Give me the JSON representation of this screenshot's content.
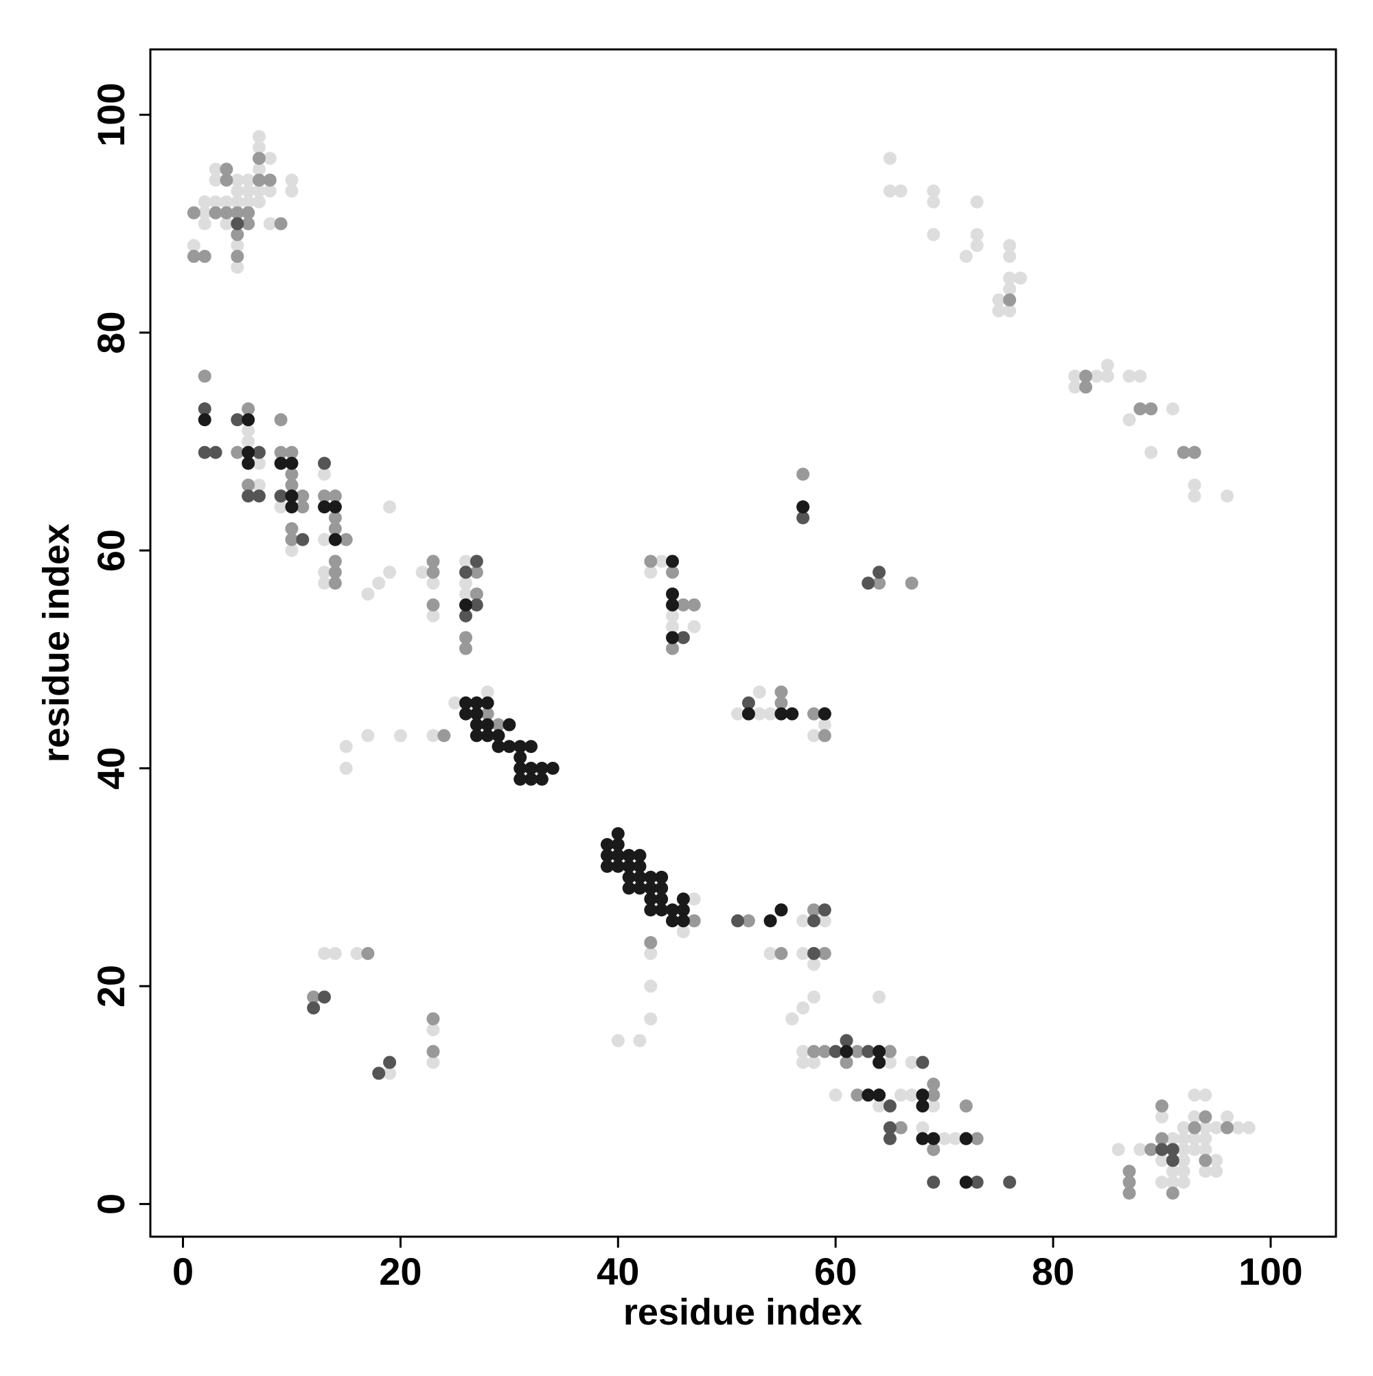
{
  "chart_data": {
    "type": "scatter",
    "x_label": "residue index",
    "y_label": "residue index",
    "xlim": [
      -3,
      106
    ],
    "ylim": [
      -3,
      106
    ],
    "xticks": [
      0,
      20,
      40,
      60,
      80,
      100
    ],
    "yticks": [
      0,
      20,
      40,
      60,
      80,
      100
    ],
    "grid": false,
    "series": [
      {
        "color": "#dddddd",
        "x": [
          1,
          2,
          2,
          2,
          3,
          3,
          3,
          4,
          4,
          5,
          5,
          5,
          5,
          5,
          6,
          6,
          6,
          7,
          7,
          7,
          7,
          7,
          8,
          8,
          8,
          10,
          10,
          65,
          65,
          66,
          69,
          69,
          69,
          72,
          73,
          73,
          73,
          76,
          76,
          76,
          76,
          75,
          75,
          76,
          77,
          82,
          82,
          84,
          85,
          85,
          87,
          87,
          88,
          89,
          91,
          93,
          93,
          93,
          96,
          6,
          6,
          7,
          7,
          10,
          9,
          13,
          13,
          13,
          13,
          17,
          18,
          19,
          19,
          22,
          23,
          23,
          26,
          26,
          26,
          25,
          28,
          23,
          20,
          17,
          15,
          15,
          13,
          14,
          16,
          23,
          23,
          19,
          44,
          43,
          45,
          45,
          47,
          51,
          53,
          53,
          54,
          59,
          58,
          58,
          47,
          46,
          43,
          43,
          43,
          40,
          42,
          56,
          57,
          59,
          54,
          57,
          58,
          58,
          57,
          56,
          64,
          57,
          57,
          58,
          61,
          63,
          65,
          67,
          60,
          63,
          64,
          66,
          67,
          69,
          66,
          68,
          69,
          70,
          71,
          86,
          88,
          90,
          90,
          90,
          91,
          91,
          91,
          92,
          92,
          92,
          92,
          92,
          92,
          93,
          93,
          93,
          93,
          94,
          94,
          94,
          94,
          94,
          95,
          95,
          95,
          96,
          97,
          98
        ],
        "y": [
          88,
          92,
          91,
          90,
          95,
          94,
          92,
          92,
          90,
          94,
          93,
          92,
          88,
          86,
          94,
          93,
          92,
          98,
          97,
          95,
          93,
          92,
          96,
          93,
          90,
          94,
          93,
          96,
          93,
          93,
          93,
          92,
          89,
          87,
          92,
          89,
          88,
          88,
          87,
          85,
          84,
          83,
          82,
          82,
          85,
          76,
          75,
          76,
          77,
          76,
          76,
          72,
          76,
          69,
          73,
          69,
          66,
          65,
          65,
          71,
          70,
          66,
          68,
          60,
          64,
          67,
          61,
          58,
          57,
          56,
          57,
          58,
          64,
          58,
          57,
          54,
          59,
          57,
          56,
          46,
          47,
          43,
          43,
          43,
          42,
          40,
          23,
          23,
          23,
          16,
          13,
          12,
          59,
          58,
          54,
          53,
          53,
          45,
          47,
          45,
          45,
          44,
          43,
          22,
          28,
          25,
          23,
          20,
          17,
          15,
          15,
          17,
          26,
          26,
          23,
          23,
          19,
          14,
          18,
          17,
          19,
          14,
          13,
          13,
          13,
          14,
          13,
          13,
          10,
          10,
          9,
          10,
          10,
          9,
          7,
          7,
          5,
          6,
          6,
          5,
          5,
          8,
          4,
          2,
          6,
          3,
          2,
          7,
          6,
          5,
          4,
          3,
          2,
          10,
          8,
          6,
          5,
          10,
          7,
          6,
          5,
          3,
          4,
          3,
          7,
          8,
          7,
          7
        ]
      },
      {
        "color": "#999999",
        "x": [
          1,
          1,
          2,
          4,
          4,
          4,
          5,
          5,
          5,
          6,
          6,
          7,
          7,
          8,
          9,
          3,
          76,
          83,
          83,
          88,
          89,
          92,
          93,
          2,
          5,
          6,
          6,
          9,
          9,
          10,
          10,
          10,
          10,
          10,
          11,
          11,
          13,
          14,
          14,
          14,
          14,
          14,
          14,
          14,
          15,
          23,
          23,
          23,
          24,
          26,
          26,
          27,
          27,
          28,
          29,
          17,
          12,
          23,
          23,
          43,
          45,
          45,
          46,
          47,
          52,
          55,
          55,
          58,
          59,
          57,
          57,
          64,
          67,
          47,
          52,
          55,
          58,
          43,
          55,
          59,
          58,
          59,
          62,
          65,
          61,
          62,
          64,
          69,
          69,
          66,
          73,
          72,
          72,
          69,
          87,
          89,
          87,
          87,
          90,
          90,
          91,
          93,
          94,
          94,
          96
        ],
        "y": [
          91,
          87,
          87,
          95,
          94,
          91,
          91,
          89,
          87,
          90,
          91,
          94,
          96,
          94,
          90,
          91,
          83,
          76,
          75,
          73,
          73,
          69,
          69,
          76,
          69,
          73,
          66,
          69,
          72,
          69,
          67,
          66,
          62,
          61,
          65,
          64,
          65,
          65,
          63,
          62,
          59,
          58,
          57,
          61,
          61,
          59,
          58,
          55,
          43,
          52,
          51,
          58,
          56,
          45,
          44,
          23,
          19,
          17,
          14,
          59,
          58,
          51,
          55,
          55,
          45,
          47,
          46,
          45,
          43,
          67,
          64,
          57,
          57,
          26,
          26,
          27,
          27,
          24,
          23,
          23,
          14,
          14,
          14,
          14,
          13,
          10,
          10,
          11,
          10,
          7,
          6,
          6,
          9,
          5,
          3,
          5,
          2,
          1,
          9,
          6,
          1,
          7,
          8,
          4,
          7
        ]
      },
      {
        "color": "#555555",
        "x": [
          5,
          2,
          2,
          3,
          5,
          6,
          7,
          7,
          9,
          11,
          13,
          26,
          27,
          27,
          26,
          52,
          63,
          64,
          59,
          58,
          58,
          59,
          61,
          63,
          60,
          68,
          65,
          65,
          65,
          73,
          76,
          51,
          19,
          18,
          13,
          12,
          91,
          91,
          90,
          57,
          46,
          69
        ],
        "y": [
          90,
          73,
          69,
          69,
          72,
          65,
          65,
          69,
          65,
          61,
          68,
          58,
          59,
          55,
          54,
          46,
          57,
          58,
          27,
          26,
          23,
          45,
          15,
          14,
          14,
          13,
          7,
          6,
          9,
          2,
          2,
          26,
          13,
          12,
          19,
          18,
          5,
          4,
          5,
          63,
          52,
          2
        ]
      },
      {
        "color": "#1a1a1a",
        "x": [
          2,
          6,
          6,
          6,
          9,
          10,
          10,
          10,
          13,
          14,
          14,
          26,
          45,
          45,
          45,
          45,
          27,
          28,
          27,
          27,
          28,
          27,
          28,
          29,
          30,
          29,
          30,
          31,
          32,
          31,
          31,
          32,
          33,
          34,
          31,
          32,
          33,
          26,
          26,
          40,
          39,
          40,
          39,
          40,
          41,
          42,
          39,
          40,
          41,
          42,
          41,
          42,
          43,
          44,
          41,
          42,
          43,
          43,
          44,
          43,
          44,
          45,
          45,
          46,
          46,
          46,
          44,
          52,
          55,
          56,
          59,
          55,
          54,
          57,
          61,
          64,
          64,
          64,
          63,
          68,
          68,
          69,
          68,
          72,
          72
        ],
        "y": [
          72,
          72,
          69,
          68,
          68,
          68,
          65,
          64,
          64,
          64,
          61,
          55,
          59,
          56,
          55,
          52,
          46,
          46,
          45,
          44,
          44,
          43,
          43,
          43,
          44,
          42,
          42,
          42,
          42,
          41,
          40,
          40,
          40,
          40,
          39,
          39,
          39,
          46,
          45,
          34,
          33,
          33,
          32,
          32,
          32,
          32,
          31,
          31,
          31,
          31,
          30,
          30,
          30,
          30,
          29,
          29,
          29,
          28,
          28,
          27,
          27,
          27,
          26,
          26,
          27,
          28,
          29,
          45,
          45,
          45,
          45,
          27,
          26,
          64,
          14,
          14,
          13,
          10,
          10,
          10,
          9,
          6,
          6,
          6,
          2
        ]
      }
    ]
  }
}
